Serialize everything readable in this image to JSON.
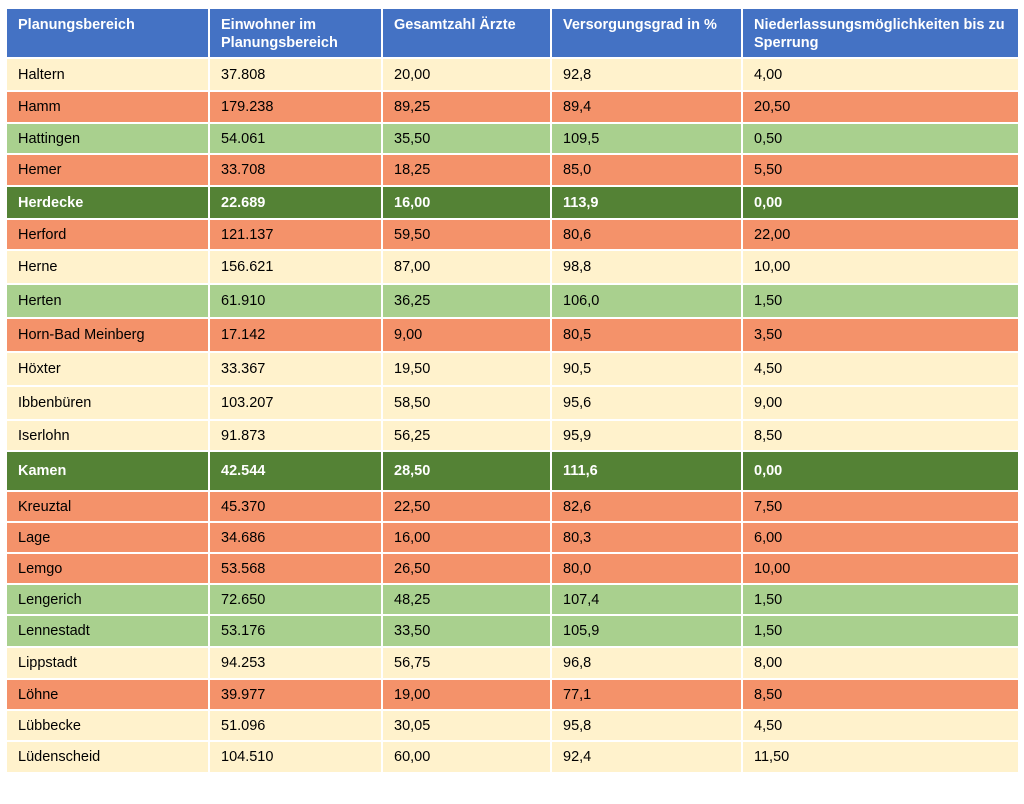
{
  "table": {
    "headers": [
      "Planungsbereich",
      "Einwohner im Planungsbereich",
      "Gesamtzahl Ärzte",
      "Versorgungsgrad in %",
      "Niederlassungsmöglichkeiten bis zu Sperrung"
    ],
    "status_colors": {
      "neutral": "#fff2cc",
      "under": "#f4926a",
      "over": "#a9d08e",
      "locked": "#548235",
      "header": "#4472c4"
    },
    "rows": [
      {
        "status": "neutral",
        "cells": [
          "Haltern",
          "37.808",
          "20,00",
          "92,8",
          "4,00"
        ]
      },
      {
        "status": "under",
        "cells": [
          "Hamm",
          "179.238",
          "89,25",
          "89,4",
          "20,50"
        ]
      },
      {
        "status": "over",
        "cells": [
          "Hattingen",
          "54.061",
          "35,50",
          "109,5",
          "0,50"
        ]
      },
      {
        "status": "under",
        "cells": [
          "Hemer",
          "33.708",
          "18,25",
          "85,0",
          "5,50"
        ]
      },
      {
        "status": "locked",
        "cells": [
          "Herdecke",
          "22.689",
          "16,00",
          "113,9",
          "0,00"
        ]
      },
      {
        "status": "under",
        "cells": [
          "Herford",
          "121.137",
          "59,50",
          "80,6",
          "22,00"
        ]
      },
      {
        "status": "neutral",
        "cells": [
          "Herne",
          "156.621",
          "87,00",
          "98,8",
          "10,00"
        ]
      },
      {
        "status": "over",
        "cells": [
          "Herten",
          "61.910",
          "36,25",
          "106,0",
          "1,50"
        ]
      },
      {
        "status": "under",
        "cells": [
          "Horn-Bad Meinberg",
          "17.142",
          "9,00",
          "80,5",
          "3,50"
        ]
      },
      {
        "status": "neutral",
        "cells": [
          "Höxter",
          "33.367",
          "19,50",
          "90,5",
          "4,50"
        ]
      },
      {
        "status": "neutral",
        "cells": [
          "Ibbenbüren",
          "103.207",
          "58,50",
          "95,6",
          "9,00"
        ]
      },
      {
        "status": "neutral",
        "cells": [
          "Iserlohn",
          "91.873",
          "56,25",
          "95,9",
          "8,50"
        ]
      },
      {
        "status": "locked",
        "cells": [
          "Kamen",
          "42.544",
          "28,50",
          "111,6",
          "0,00"
        ]
      },
      {
        "status": "under",
        "cells": [
          "Kreuztal",
          "45.370",
          "22,50",
          "82,6",
          "7,50"
        ]
      },
      {
        "status": "under",
        "cells": [
          "Lage",
          "34.686",
          "16,00",
          "80,3",
          "6,00"
        ]
      },
      {
        "status": "under",
        "cells": [
          "Lemgo",
          "53.568",
          "26,50",
          "80,0",
          "10,00"
        ]
      },
      {
        "status": "over",
        "cells": [
          "Lengerich",
          "72.650",
          "48,25",
          "107,4",
          "1,50"
        ]
      },
      {
        "status": "over",
        "cells": [
          "Lennestadt",
          "53.176",
          "33,50",
          "105,9",
          "1,50"
        ]
      },
      {
        "status": "neutral",
        "cells": [
          "Lippstadt",
          "94.253",
          "56,75",
          "96,8",
          "8,00"
        ]
      },
      {
        "status": "under",
        "cells": [
          "Löhne",
          "39.977",
          "19,00",
          "77,1",
          "8,50"
        ]
      },
      {
        "status": "neutral",
        "cells": [
          "Lübbecke",
          "51.096",
          "30,05",
          "95,8",
          "4,50"
        ]
      },
      {
        "status": "neutral",
        "cells": [
          "Lüdenscheid",
          "104.510",
          "60,00",
          "92,4",
          "11,50"
        ]
      }
    ]
  }
}
